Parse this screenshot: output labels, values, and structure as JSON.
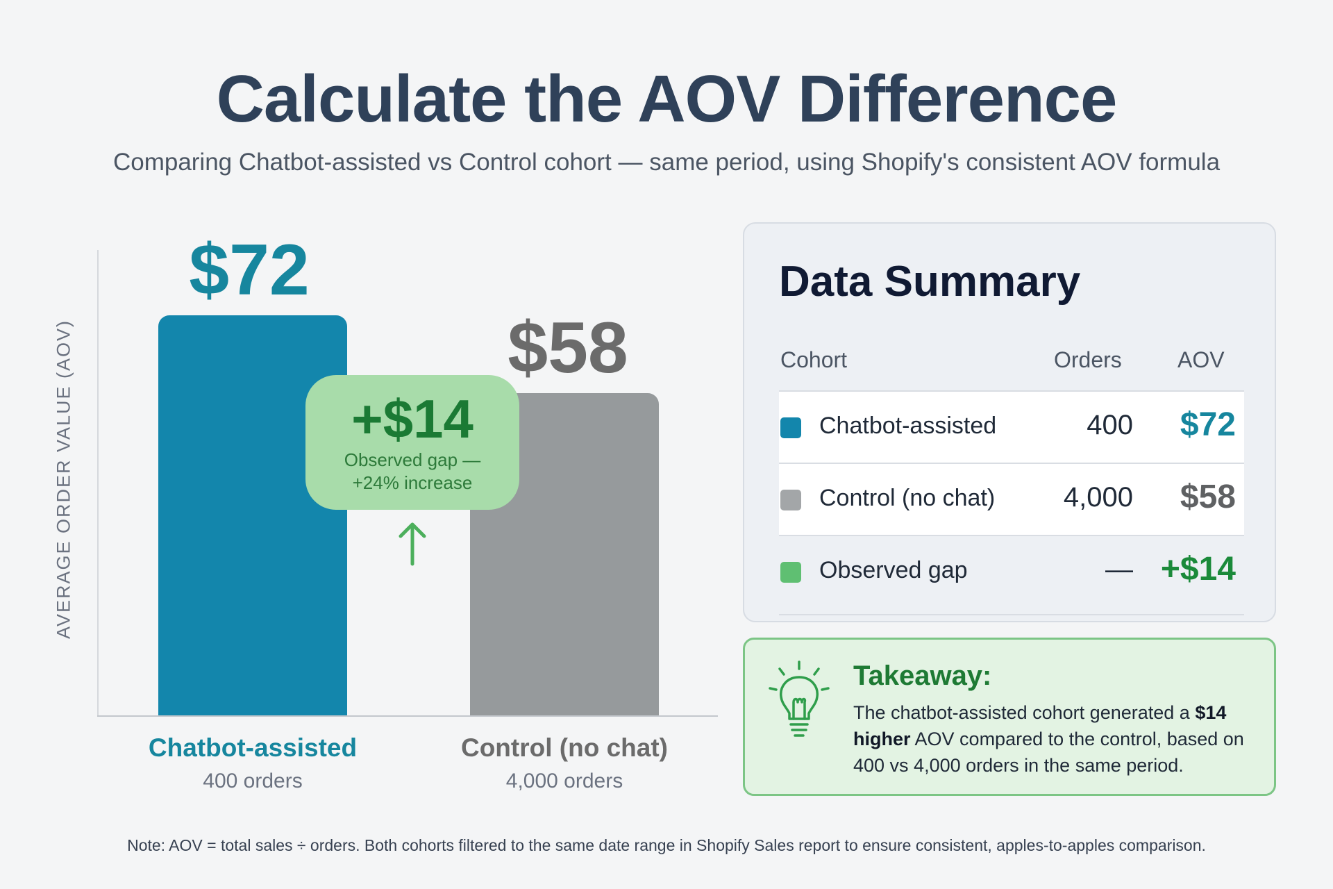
{
  "header": {
    "title": "Calculate the AOV Difference",
    "subtitle": "Comparing Chatbot-assisted vs Control cohort — same period, using Shopify's consistent AOV formula"
  },
  "colors": {
    "chatbot": "#1386ac",
    "control": "#969a9c",
    "gap": "#5fbf72",
    "chatbot_text": "#16869e",
    "control_text": "#6b6b6b",
    "gap_text": "#1b8a3a"
  },
  "chart_data": {
    "type": "bar",
    "ylabel": "AVERAGE ORDER VALUE (AOV)",
    "xlabel": "",
    "ylim": [
      0,
      72
    ],
    "categories": [
      "Chatbot-assisted",
      "Control (no chat)"
    ],
    "values": [
      72,
      58
    ],
    "value_labels": [
      "$72",
      "$58"
    ],
    "sublabels": [
      "400 orders",
      "4,000 orders"
    ],
    "annotation": {
      "value": "+$14",
      "line1": "Observed gap —",
      "line2": "+24% increase"
    }
  },
  "summary": {
    "title": "Data Summary",
    "headers": {
      "cohort": "Cohort",
      "orders": "Orders",
      "aov": "AOV"
    },
    "rows": [
      {
        "cohort": "Chatbot-assisted",
        "orders": "400",
        "aov": "$72"
      },
      {
        "cohort": "Control (no chat)",
        "orders": "4,000",
        "aov": "$58"
      },
      {
        "cohort": "Observed gap",
        "orders": "—",
        "aov": "+$14"
      }
    ]
  },
  "takeaway": {
    "title": "Takeaway:",
    "text_before": "The chatbot-assisted cohort generated a ",
    "text_bold": "$14 higher",
    "text_after": " AOV compared to the control, based on 400 vs 4,000 orders in the same period."
  },
  "footnote": "Note: AOV = total sales ÷ orders. Both cohorts filtered to the same date range in Shopify Sales report to ensure consistent, apples-to-apples comparison.",
  "icons": {
    "takeaway": "lightbulb-icon",
    "gap": "arrow-up-icon"
  }
}
